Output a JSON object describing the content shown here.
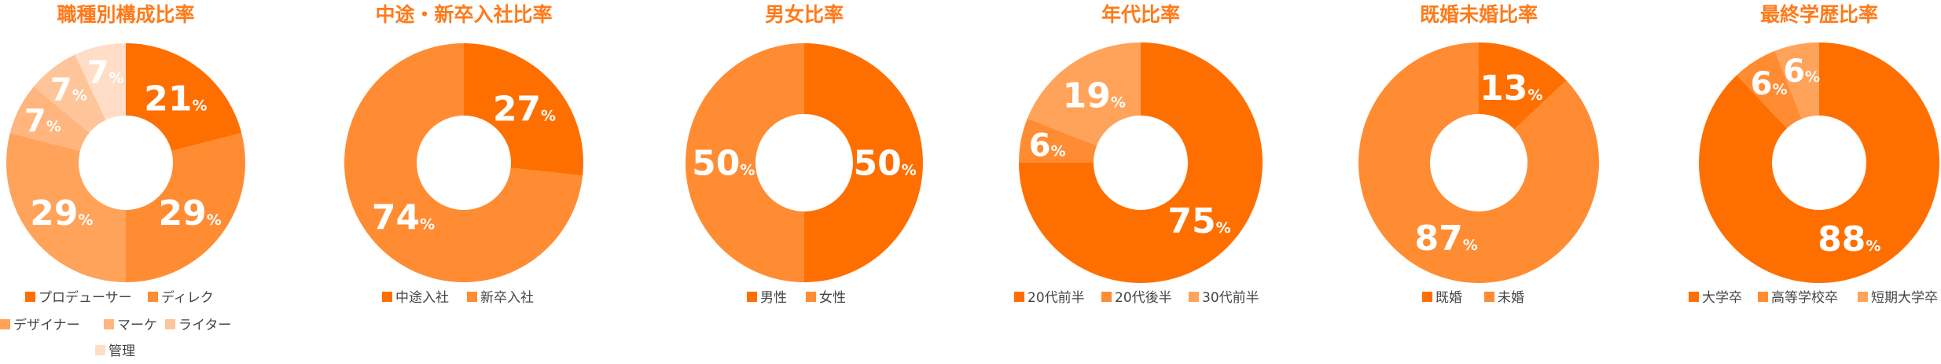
{
  "colors": {
    "title": "#ff7a1a",
    "palette": [
      "#ff6f00",
      "#ff8c33",
      "#ffa35a",
      "#ffb57d",
      "#ffc59a",
      "#ffddc6"
    ]
  },
  "chart_data": [
    {
      "type": "pie",
      "title": "職種別構成比率",
      "categories": [
        "プロデューサー",
        "ディレクター",
        "デザイナー",
        "マーケ",
        "ライター",
        "管理"
      ],
      "values": [
        21,
        29,
        29,
        7,
        7,
        7
      ],
      "data_labels": [
        "21",
        "29",
        "29",
        "7",
        "7",
        "7"
      ],
      "legend": [
        "プロデューサー",
        "ディレク",
        "デザイナー",
        "マーケ",
        "ライター",
        "管理"
      ],
      "unit": "%"
    },
    {
      "type": "pie",
      "title": "中途・新卒入社比率",
      "categories": [
        "中途入社",
        "新卒入社"
      ],
      "values": [
        27,
        74
      ],
      "data_labels": [
        "27",
        "74"
      ],
      "legend": [
        "中途入社",
        "新卒入社"
      ],
      "unit": "%"
    },
    {
      "type": "pie",
      "title": "男女比率",
      "categories": [
        "男性",
        "女性"
      ],
      "values": [
        50,
        50
      ],
      "data_labels": [
        "50",
        "50"
      ],
      "legend": [
        "男性",
        "女性"
      ],
      "unit": "%"
    },
    {
      "type": "pie",
      "title": "年代比率",
      "categories": [
        "20代前半",
        "20代後半",
        "30代前半"
      ],
      "values": [
        75,
        6,
        19
      ],
      "data_labels": [
        "75",
        "6",
        "19"
      ],
      "legend": [
        "20代前半",
        "20代後半",
        "30代前半"
      ],
      "unit": "%"
    },
    {
      "type": "pie",
      "title": "既婚未婚比率",
      "categories": [
        "既婚",
        "未婚"
      ],
      "values": [
        13,
        87
      ],
      "data_labels": [
        "13",
        "87"
      ],
      "legend": [
        "既婚",
        "未婚"
      ],
      "unit": "%"
    },
    {
      "type": "pie",
      "title": "最終学歴比率",
      "categories": [
        "大学卒",
        "高等学校卒",
        "短期大学卒"
      ],
      "values": [
        88,
        6,
        6
      ],
      "data_labels": [
        "88",
        "6",
        "6"
      ],
      "legend": [
        "大学卒",
        "高等学校卒",
        "短期大学卒"
      ],
      "unit": "%"
    }
  ]
}
